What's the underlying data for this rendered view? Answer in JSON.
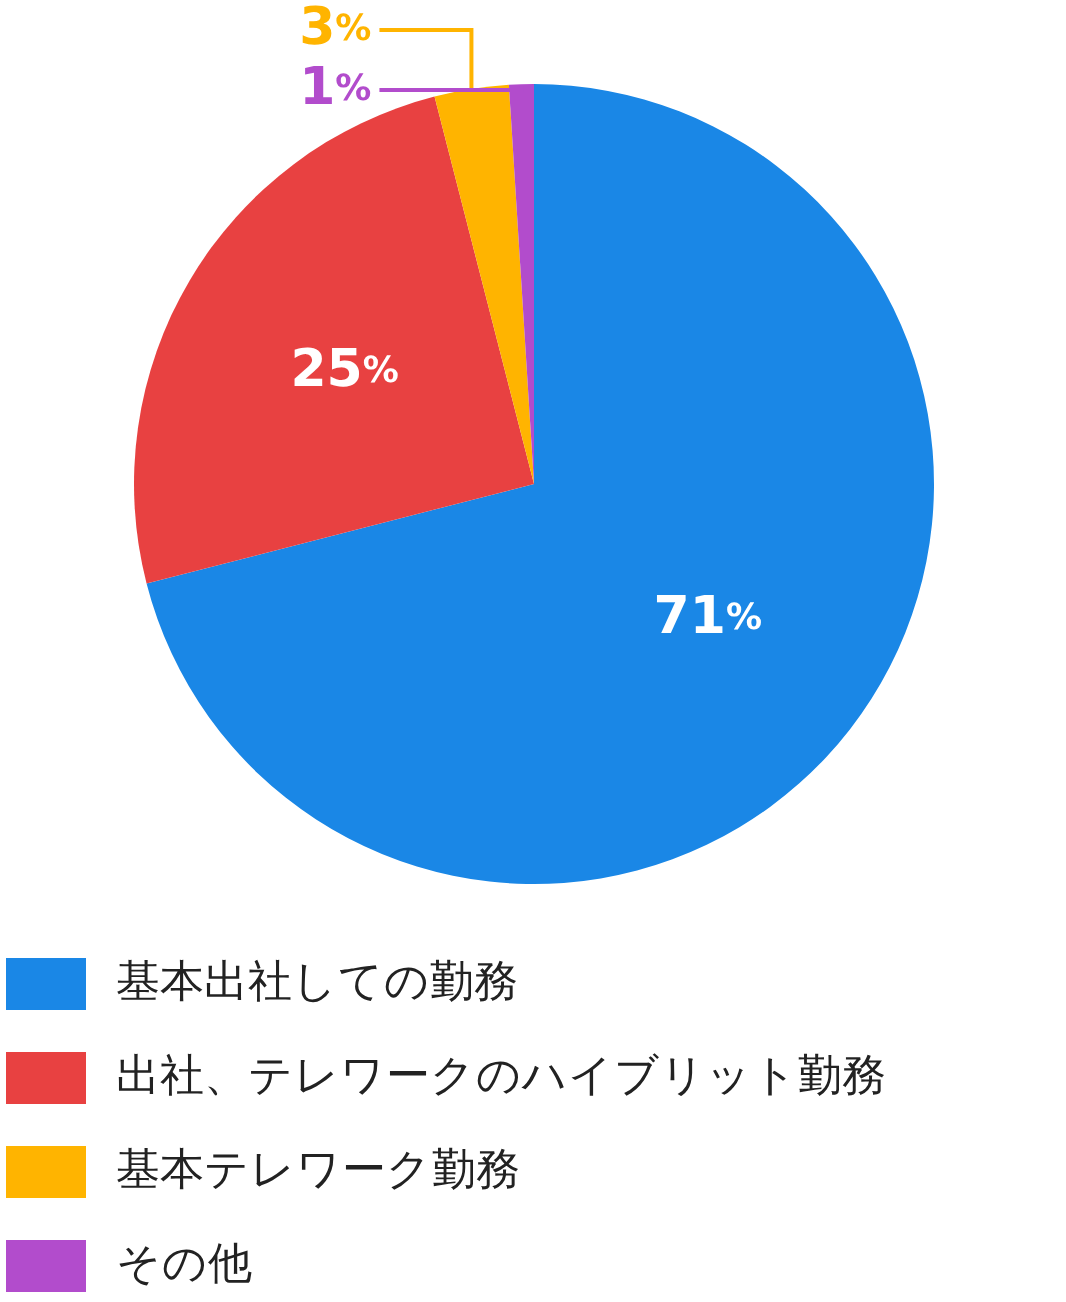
{
  "chart_data": {
    "type": "pie",
    "categories": [
      "基本出社しての勤務",
      "出社、テレワークのハイブリット勤務",
      "基本テレワーク勤務",
      "その他"
    ],
    "values": [
      71,
      25,
      3,
      1
    ],
    "colors": [
      "#1a87e6",
      "#e84141",
      "#ffb400",
      "#b24ccc"
    ],
    "value_labels": [
      "71%",
      "25%",
      "3%",
      "1%"
    ],
    "legend": "bottom"
  }
}
